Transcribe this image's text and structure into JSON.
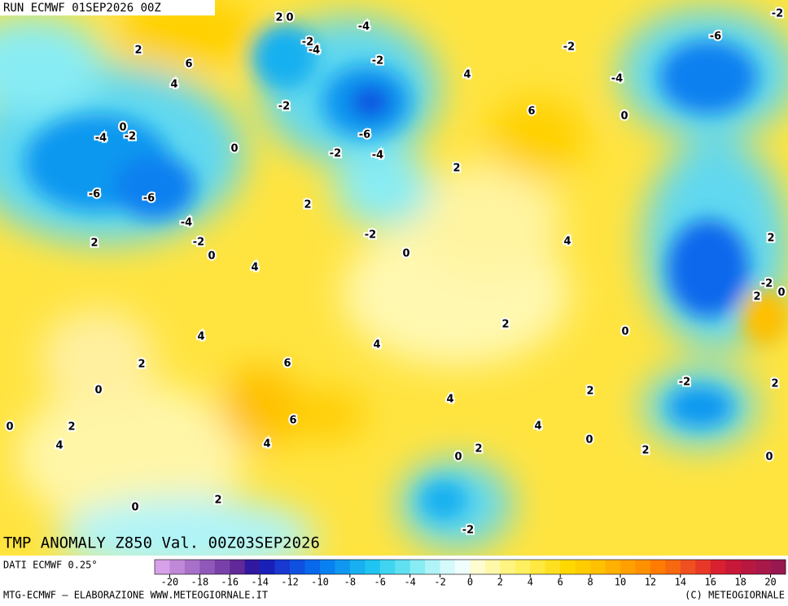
{
  "header": {
    "run": "RUN ECMWF 01SEP2026 00Z"
  },
  "map": {
    "contour_labels": [
      2,
      0,
      -4,
      2,
      6,
      4,
      -2,
      -4,
      -2,
      -2,
      -6,
      -2,
      4,
      -4,
      -2,
      6,
      0,
      0,
      -4,
      -2,
      -6,
      -2,
      -4,
      0,
      2,
      -6,
      -6,
      2,
      -4,
      -2,
      -2,
      2,
      0,
      4,
      2,
      0,
      4,
      -2,
      0,
      2,
      2,
      0,
      4,
      4,
      2,
      6,
      0,
      -2,
      2,
      2,
      4,
      6,
      0,
      2,
      4,
      0,
      4,
      4,
      2,
      0,
      2,
      0,
      2,
      0,
      -2
    ]
  },
  "title": "TMP ANOMALY Z850 Val. 00Z03SEP2026",
  "colorbar": {
    "source": "DATI ECMWF 0.25°",
    "colors": [
      "#d8a0e8",
      "#c088d8",
      "#a870c8",
      "#9058b8",
      "#7840a8",
      "#602898",
      "#3018a0",
      "#1820b8",
      "#1838d0",
      "#1050e0",
      "#0868ec",
      "#0880f0",
      "#1098f0",
      "#18b0f0",
      "#20c4f0",
      "#40d4f0",
      "#60e0f0",
      "#88ecf4",
      "#b0f4f8",
      "#d4fafc",
      "#f0fefe",
      "#fffcd0",
      "#fff8a8",
      "#fff480",
      "#fff060",
      "#ffe840",
      "#ffe020",
      "#ffd800",
      "#ffcc00",
      "#ffc000",
      "#ffb000",
      "#ffa000",
      "#ff9000",
      "#ff7c00",
      "#f86810",
      "#f05020",
      "#e83828",
      "#d82030",
      "#c81838",
      "#b81840",
      "#a81848",
      "#981850"
    ],
    "ticks": [
      -20,
      -18,
      -16,
      -14,
      -12,
      -10,
      -8,
      -6,
      -4,
      -2,
      0,
      2,
      4,
      6,
      8,
      10,
      12,
      14,
      16,
      18,
      20
    ]
  },
  "footer": {
    "left": "MTG-ECMWF – ELABORAZIONE WWW.METEOGIORNALE.IT",
    "right": "(C) METEOGIORNALE"
  }
}
